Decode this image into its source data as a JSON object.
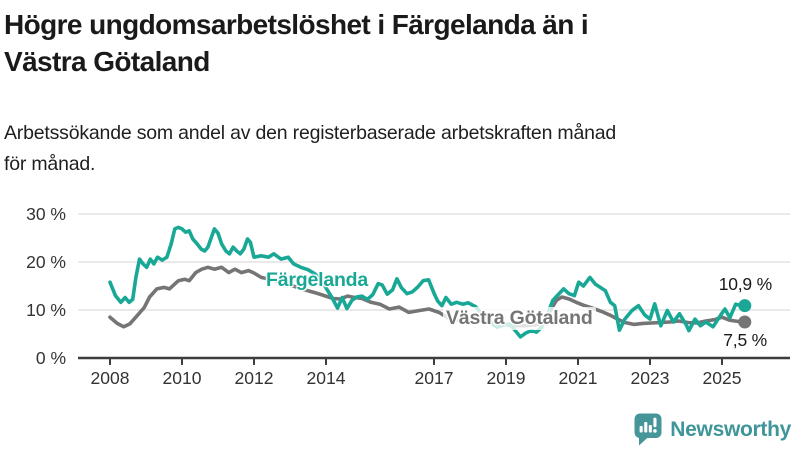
{
  "header": {
    "title_line1": "Högre ungdomsarbetslöshet i Färgelanda än i",
    "title_line2": "Västra Götaland",
    "subtitle_line1": "Arbetssökande som andel av den registerbaserade arbetskraften månad",
    "subtitle_line2": "för månad."
  },
  "footer": {
    "brand": "Newsworthy",
    "logo_icon": "bar-chart-speech-bubble-icon"
  },
  "colors": {
    "fargelanda_line": "#1AA896",
    "vastra_gotaland_line": "#757575",
    "gridline": "#dcdcdc",
    "axis": "#3d3d3d",
    "brand_teal": "#3F969A"
  },
  "chart_data": {
    "type": "line",
    "title": "Högre ungdomsarbetslöshet i Färgelanda än i Västra Götaland",
    "subtitle": "Arbetssökande som andel av den registerbaserade arbetskraften månad för månad.",
    "xlabel": "",
    "ylabel": "",
    "grid": "horizontal",
    "legend_position": "inline-labels",
    "xlim": [
      2007.1,
      2026.9
    ],
    "ylim": [
      0,
      30
    ],
    "y_ticks": [
      {
        "label": "0 %",
        "value": 0
      },
      {
        "label": "10 %",
        "value": 10
      },
      {
        "label": "20 %",
        "value": 20
      },
      {
        "label": "30 %",
        "value": 30
      }
    ],
    "x_ticks": [
      {
        "label": "2008",
        "year": 2008
      },
      {
        "label": "2010",
        "year": 2010
      },
      {
        "label": "2012",
        "year": 2012
      },
      {
        "label": "2014",
        "year": 2014
      },
      {
        "label": "2017",
        "year": 2017
      },
      {
        "label": "2019",
        "year": 2019
      },
      {
        "label": "2021",
        "year": 2021
      },
      {
        "label": "2023",
        "year": 2023
      },
      {
        "label": "2025",
        "year": 2025
      }
    ],
    "series": [
      {
        "name": "Färgelanda",
        "color": "#1AA896",
        "end_label": "10,9 %",
        "end_value": 10.9,
        "points": [
          [
            2008.0,
            15.8
          ],
          [
            2008.15,
            13.0
          ],
          [
            2008.3,
            11.6
          ],
          [
            2008.42,
            12.6
          ],
          [
            2008.53,
            11.6
          ],
          [
            2008.63,
            12.2
          ],
          [
            2008.72,
            16.8
          ],
          [
            2008.82,
            20.6
          ],
          [
            2008.92,
            19.6
          ],
          [
            2009.02,
            18.9
          ],
          [
            2009.12,
            20.6
          ],
          [
            2009.22,
            19.6
          ],
          [
            2009.32,
            21.0
          ],
          [
            2009.45,
            20.4
          ],
          [
            2009.58,
            21.0
          ],
          [
            2009.7,
            23.8
          ],
          [
            2009.8,
            26.9
          ],
          [
            2009.9,
            27.2
          ],
          [
            2010.0,
            26.9
          ],
          [
            2010.1,
            26.2
          ],
          [
            2010.2,
            26.5
          ],
          [
            2010.3,
            24.8
          ],
          [
            2010.42,
            23.8
          ],
          [
            2010.53,
            22.7
          ],
          [
            2010.63,
            22.3
          ],
          [
            2010.72,
            23.1
          ],
          [
            2010.8,
            24.8
          ],
          [
            2010.9,
            26.9
          ],
          [
            2011.0,
            26.0
          ],
          [
            2011.1,
            23.8
          ],
          [
            2011.22,
            22.3
          ],
          [
            2011.32,
            21.7
          ],
          [
            2011.42,
            23.1
          ],
          [
            2011.52,
            22.3
          ],
          [
            2011.62,
            21.7
          ],
          [
            2011.72,
            22.7
          ],
          [
            2011.82,
            24.8
          ],
          [
            2011.9,
            24.1
          ],
          [
            2012.0,
            21.0
          ],
          [
            2012.2,
            21.3
          ],
          [
            2012.4,
            21.0
          ],
          [
            2012.55,
            21.7
          ],
          [
            2012.75,
            20.6
          ],
          [
            2012.95,
            21.0
          ],
          [
            2013.1,
            19.6
          ],
          [
            2013.3,
            18.9
          ],
          [
            2013.5,
            18.4
          ],
          [
            2013.7,
            17.5
          ],
          [
            2013.9,
            15.8
          ],
          [
            2014.05,
            14.0
          ],
          [
            2014.18,
            12.4
          ],
          [
            2014.32,
            10.4
          ],
          [
            2014.45,
            12.6
          ],
          [
            2014.58,
            10.3
          ],
          [
            2014.72,
            12.0
          ],
          [
            2014.85,
            12.7
          ],
          [
            2015.0,
            12.9
          ],
          [
            2015.15,
            12.2
          ],
          [
            2015.3,
            13.2
          ],
          [
            2015.45,
            15.5
          ],
          [
            2015.56,
            15.2
          ],
          [
            2015.7,
            13.3
          ],
          [
            2015.85,
            14.2
          ],
          [
            2015.97,
            16.5
          ],
          [
            2016.1,
            14.6
          ],
          [
            2016.25,
            13.4
          ],
          [
            2016.4,
            13.8
          ],
          [
            2016.55,
            14.8
          ],
          [
            2016.7,
            16.1
          ],
          [
            2016.85,
            16.3
          ],
          [
            2017.0,
            13.5
          ],
          [
            2017.1,
            11.9
          ],
          [
            2017.22,
            10.9
          ],
          [
            2017.33,
            12.6
          ],
          [
            2017.48,
            11.2
          ],
          [
            2017.63,
            11.6
          ],
          [
            2017.8,
            11.2
          ],
          [
            2017.95,
            11.5
          ],
          [
            2018.15,
            10.7
          ],
          [
            2018.35,
            9.0
          ],
          [
            2018.55,
            7.5
          ],
          [
            2018.75,
            6.4
          ],
          [
            2018.95,
            6.9
          ],
          [
            2019.1,
            7.1
          ],
          [
            2019.25,
            5.8
          ],
          [
            2019.4,
            4.4
          ],
          [
            2019.55,
            5.2
          ],
          [
            2019.7,
            5.7
          ],
          [
            2019.85,
            5.4
          ],
          [
            2020.0,
            6.5
          ],
          [
            2020.15,
            9.0
          ],
          [
            2020.3,
            12.0
          ],
          [
            2020.45,
            13.2
          ],
          [
            2020.6,
            14.4
          ],
          [
            2020.75,
            13.4
          ],
          [
            2020.9,
            13.0
          ],
          [
            2021.02,
            15.8
          ],
          [
            2021.15,
            15.0
          ],
          [
            2021.33,
            16.8
          ],
          [
            2021.48,
            15.4
          ],
          [
            2021.62,
            14.7
          ],
          [
            2021.76,
            14.0
          ],
          [
            2021.9,
            11.6
          ],
          [
            2022.02,
            10.9
          ],
          [
            2022.15,
            5.8
          ],
          [
            2022.3,
            8.1
          ],
          [
            2022.5,
            9.9
          ],
          [
            2022.68,
            10.9
          ],
          [
            2022.85,
            9.0
          ],
          [
            2023.0,
            8.1
          ],
          [
            2023.13,
            11.3
          ],
          [
            2023.3,
            6.7
          ],
          [
            2023.48,
            9.9
          ],
          [
            2023.65,
            7.5
          ],
          [
            2023.82,
            9.2
          ],
          [
            2024.0,
            7.0
          ],
          [
            2024.08,
            5.7
          ],
          [
            2024.25,
            8.1
          ],
          [
            2024.4,
            6.7
          ],
          [
            2024.55,
            7.5
          ],
          [
            2024.75,
            6.5
          ],
          [
            2024.95,
            8.8
          ],
          [
            2025.08,
            10.2
          ],
          [
            2025.22,
            8.4
          ],
          [
            2025.38,
            11.2
          ],
          [
            2025.55,
            10.9
          ]
        ]
      },
      {
        "name": "Västra Götaland",
        "color": "#757575",
        "end_label": "7,5 %",
        "end_value": 7.5,
        "points": [
          [
            2008.0,
            8.5
          ],
          [
            2008.2,
            7.2
          ],
          [
            2008.38,
            6.5
          ],
          [
            2008.55,
            7.1
          ],
          [
            2008.75,
            8.8
          ],
          [
            2008.95,
            10.5
          ],
          [
            2009.1,
            12.7
          ],
          [
            2009.3,
            14.4
          ],
          [
            2009.5,
            14.7
          ],
          [
            2009.65,
            14.4
          ],
          [
            2009.9,
            16.1
          ],
          [
            2010.08,
            16.4
          ],
          [
            2010.2,
            16.1
          ],
          [
            2010.38,
            17.8
          ],
          [
            2010.55,
            18.5
          ],
          [
            2010.72,
            18.9
          ],
          [
            2010.9,
            18.5
          ],
          [
            2011.1,
            18.9
          ],
          [
            2011.3,
            17.8
          ],
          [
            2011.47,
            18.5
          ],
          [
            2011.65,
            17.8
          ],
          [
            2011.85,
            18.2
          ],
          [
            2012.0,
            17.7
          ],
          [
            2012.2,
            16.8
          ],
          [
            2012.45,
            16.4
          ],
          [
            2012.7,
            16.0
          ],
          [
            2012.95,
            15.4
          ],
          [
            2013.2,
            14.7
          ],
          [
            2013.45,
            14.1
          ],
          [
            2013.7,
            13.6
          ],
          [
            2013.95,
            13.0
          ],
          [
            2014.2,
            12.4
          ],
          [
            2014.4,
            12.3
          ],
          [
            2014.6,
            12.9
          ],
          [
            2014.8,
            12.6
          ],
          [
            2015.0,
            12.4
          ],
          [
            2015.25,
            11.6
          ],
          [
            2015.5,
            11.2
          ],
          [
            2015.76,
            10.2
          ],
          [
            2016.03,
            10.6
          ],
          [
            2016.3,
            9.5
          ],
          [
            2016.6,
            9.9
          ],
          [
            2016.86,
            10.2
          ],
          [
            2017.14,
            9.5
          ],
          [
            2017.4,
            8.3
          ],
          [
            2017.7,
            7.8
          ],
          [
            2018.0,
            8.0
          ],
          [
            2018.3,
            7.6
          ],
          [
            2018.6,
            7.3
          ],
          [
            2018.9,
            7.0
          ],
          [
            2019.2,
            6.8
          ],
          [
            2019.5,
            6.7
          ],
          [
            2019.8,
            6.9
          ],
          [
            2020.0,
            7.3
          ],
          [
            2020.2,
            9.5
          ],
          [
            2020.4,
            12.0
          ],
          [
            2020.55,
            12.7
          ],
          [
            2020.75,
            12.3
          ],
          [
            2020.95,
            11.6
          ],
          [
            2021.15,
            11.0
          ],
          [
            2021.4,
            10.4
          ],
          [
            2021.65,
            9.7
          ],
          [
            2021.9,
            8.9
          ],
          [
            2022.1,
            8.1
          ],
          [
            2022.3,
            7.4
          ],
          [
            2022.55,
            7.0
          ],
          [
            2022.8,
            7.2
          ],
          [
            2023.05,
            7.3
          ],
          [
            2023.3,
            7.4
          ],
          [
            2023.55,
            7.5
          ],
          [
            2023.8,
            7.7
          ],
          [
            2024.05,
            7.4
          ],
          [
            2024.3,
            7.3
          ],
          [
            2024.55,
            7.7
          ],
          [
            2024.8,
            8.0
          ],
          [
            2025.0,
            8.5
          ],
          [
            2025.2,
            7.9
          ],
          [
            2025.55,
            7.5
          ]
        ]
      }
    ]
  }
}
